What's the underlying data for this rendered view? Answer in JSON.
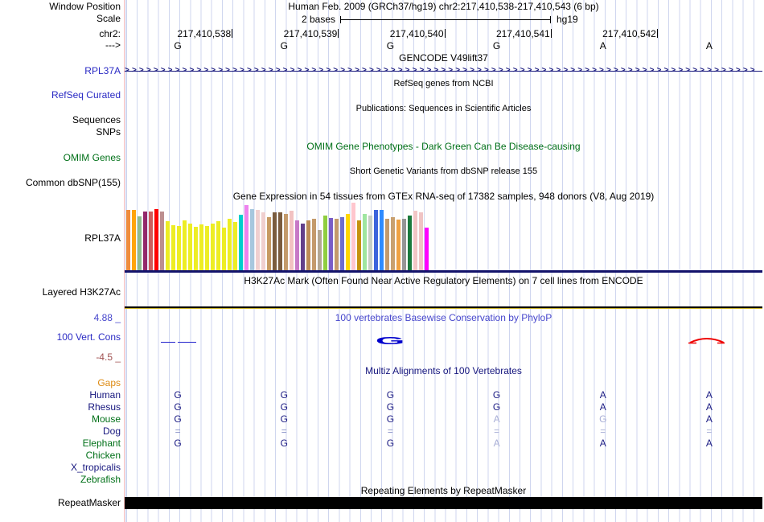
{
  "header": {
    "window_position_label": "Window Position",
    "title": "Human Feb. 2009 (GRCh37/hg19)   chr2:217,410,538-217,410,543 (6 bp)",
    "scale_label": "Scale",
    "scale_text": "2 bases",
    "assembly": "hg19",
    "chrom_label": "chr2:",
    "strand_label": "--->",
    "positions": [
      "217,410,538",
      "217,410,539",
      "217,410,540",
      "217,410,541",
      "217,410,542"
    ],
    "bases": [
      "G",
      "G",
      "G",
      "G",
      "A",
      "A"
    ]
  },
  "gencode": {
    "title": "GENCODE V49lift37",
    "gene_label": "RPL37A",
    "arrows": ">>>>>>>>>>>>>>>>>>>>>>>>>>>>>>>>>>>>>>>>>>>>>>>>>>>>>>>>>>>>>>>>>>>>>>>>>>>>>>>>>>>>>>>>"
  },
  "refseq": {
    "title": "RefSeq genes from NCBI",
    "label": "RefSeq Curated"
  },
  "publications": {
    "title": "Publications: Sequences in Scientific Articles"
  },
  "seq_snp": {
    "sequences_label": "Sequences",
    "snps_label": "SNPs"
  },
  "omim": {
    "title": "OMIM Gene Phenotypes - Dark Green Can Be Disease-causing",
    "label": "OMIM Genes"
  },
  "dbsnp": {
    "title": "Short Genetic Variants from dbSNP release 155",
    "label": "Common dbSNP(155)"
  },
  "gtex": {
    "title": "Gene Expression in 54 tissues from GTEx RNA-seq of 17382 samples, 948 donors (V8, Aug 2019)",
    "label": "RPL37A",
    "bars": [
      {
        "c": "#F08C3C",
        "h": 75
      },
      {
        "c": "#FFA40C",
        "h": 75
      },
      {
        "c": "#8FBC8F",
        "h": 67
      },
      {
        "c": "#93286B",
        "h": 73
      },
      {
        "c": "#CD5C5C",
        "h": 73
      },
      {
        "c": "#FF0000",
        "h": 76
      },
      {
        "c": "#BC8F8F",
        "h": 73
      },
      {
        "c": "#EDED24",
        "h": 61
      },
      {
        "c": "#EDED24",
        "h": 56
      },
      {
        "c": "#EDED24",
        "h": 55
      },
      {
        "c": "#EDED24",
        "h": 62
      },
      {
        "c": "#EDED24",
        "h": 58
      },
      {
        "c": "#EDED24",
        "h": 54
      },
      {
        "c": "#EDED24",
        "h": 57
      },
      {
        "c": "#EDED24",
        "h": 55
      },
      {
        "c": "#EDED24",
        "h": 58
      },
      {
        "c": "#EDED24",
        "h": 61
      },
      {
        "c": "#EDED24",
        "h": 53
      },
      {
        "c": "#EDED24",
        "h": 64
      },
      {
        "c": "#EDED24",
        "h": 60
      },
      {
        "c": "#00CDCD",
        "h": 69
      },
      {
        "c": "#EE82EE",
        "h": 81
      },
      {
        "c": "#A7C7DE",
        "h": 76
      },
      {
        "c": "#F0CFCF",
        "h": 75
      },
      {
        "c": "#F0CFCF",
        "h": 72
      },
      {
        "c": "#C79A63",
        "h": 66
      },
      {
        "c": "#7B5C3E",
        "h": 72
      },
      {
        "c": "#7B5C3E",
        "h": 72
      },
      {
        "c": "#C49A6B",
        "h": 70
      },
      {
        "c": "#F2C2C2",
        "h": 74
      },
      {
        "c": "#C779C7",
        "h": 62
      },
      {
        "c": "#62408A",
        "h": 58
      },
      {
        "c": "#BD8D57",
        "h": 62
      },
      {
        "c": "#C49A6C",
        "h": 64
      },
      {
        "c": "#B3A793",
        "h": 50
      },
      {
        "c": "#8FCE3F",
        "h": 68
      },
      {
        "c": "#7A5DC7",
        "h": 65
      },
      {
        "c": "#C49A6C",
        "h": 64
      },
      {
        "c": "#6E6ECF",
        "h": 66
      },
      {
        "c": "#FFD700",
        "h": 70
      },
      {
        "c": "#FFC6CE",
        "h": 84
      },
      {
        "c": "#C5920E",
        "h": 62
      },
      {
        "c": "#9FE6A0",
        "h": 70
      },
      {
        "c": "#C6CEC6",
        "h": 68
      },
      {
        "c": "#3C64DC",
        "h": 75
      },
      {
        "c": "#2E8BFF",
        "h": 75
      },
      {
        "c": "#C49A6C",
        "h": 64
      },
      {
        "c": "#C8A070",
        "h": 66
      },
      {
        "c": "#EFA143",
        "h": 63
      },
      {
        "c": "#969696",
        "h": 64
      },
      {
        "c": "#1B7A3D",
        "h": 68
      },
      {
        "c": "#F2C6C6",
        "h": 74
      },
      {
        "c": "#F0C4C4",
        "h": 72
      },
      {
        "c": "#FF00FF",
        "h": 53
      }
    ]
  },
  "h3k27ac": {
    "title": "H3K27Ac Mark (Often Found Near Active Regulatory Elements) on 7 cell lines from ENCODE",
    "label": "Layered H3K27Ac"
  },
  "cons": {
    "title": "100 vertebrates Basewise Conservation by PhyloP",
    "label": "100 Vert. Cons",
    "max_label": "4.88 _",
    "min_label": "-4.5 _",
    "glyph": "G"
  },
  "multiz": {
    "title": "Multiz Alignments of 100 Vertebrates",
    "rows": [
      {
        "name": "Gaps",
        "color": "orange",
        "eq": false,
        "cells": [
          "",
          "",
          "",
          "",
          "",
          ""
        ],
        "dims": [
          0,
          0,
          0,
          0,
          0,
          0
        ]
      },
      {
        "name": "Human",
        "color": "navy",
        "eq": false,
        "cells": [
          "G",
          "G",
          "G",
          "G",
          "A",
          "A"
        ],
        "dims": [
          0,
          0,
          0,
          0,
          0,
          0
        ]
      },
      {
        "name": "Rhesus",
        "color": "navy",
        "eq": false,
        "cells": [
          "G",
          "G",
          "G",
          "G",
          "A",
          "A"
        ],
        "dims": [
          0,
          0,
          0,
          0,
          0,
          0
        ]
      },
      {
        "name": "Mouse",
        "color": "green",
        "eq": false,
        "cells": [
          "G",
          "G",
          "G",
          "A",
          "G",
          "A"
        ],
        "dims": [
          0,
          0,
          0,
          1,
          1,
          0
        ]
      },
      {
        "name": "Dog",
        "color": "navy",
        "eq": true,
        "cells": [
          "=",
          "=",
          "=",
          "=",
          "=",
          "="
        ],
        "dims": [
          0,
          0,
          0,
          1,
          1,
          1
        ]
      },
      {
        "name": "Elephant",
        "color": "green",
        "eq": false,
        "cells": [
          "G",
          "G",
          "G",
          "A",
          "A",
          "A"
        ],
        "dims": [
          0,
          0,
          0,
          1,
          0,
          0
        ]
      },
      {
        "name": "Chicken",
        "color": "green",
        "eq": false,
        "cells": [
          "",
          "",
          "",
          "",
          "",
          ""
        ],
        "dims": [
          0,
          0,
          0,
          0,
          0,
          0
        ]
      },
      {
        "name": "X_tropicalis",
        "color": "navy",
        "eq": false,
        "cells": [
          "",
          "",
          "",
          "",
          "",
          ""
        ],
        "dims": [
          0,
          0,
          0,
          0,
          0,
          0
        ]
      },
      {
        "name": "Zebrafish",
        "color": "green",
        "eq": false,
        "cells": [
          "",
          "",
          "",
          "",
          "",
          ""
        ],
        "dims": [
          0,
          0,
          0,
          0,
          0,
          0
        ]
      }
    ]
  },
  "repeats": {
    "title": "Repeating Elements by RepeatMasker",
    "label": "RepeatMasker"
  }
}
